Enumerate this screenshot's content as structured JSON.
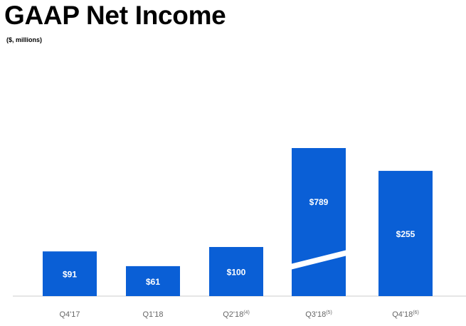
{
  "chart_data": {
    "type": "bar",
    "title": "GAAP Net Income",
    "subtitle": "($, millions)",
    "xlabel": "",
    "ylabel": "",
    "categories": [
      "Q4'17",
      "Q1'18",
      "Q2'18",
      "Q3'18",
      "Q4'18"
    ],
    "category_footnotes": [
      "",
      "",
      "(4)",
      "(5)",
      "(6)"
    ],
    "values": [
      91,
      61,
      100,
      789,
      255
    ],
    "value_labels": [
      "$91",
      "$61",
      "$100",
      "$789",
      "$255"
    ],
    "axis_break": {
      "category": "Q3'18",
      "note": "broken bar (not drawn to scale)"
    },
    "grid": false,
    "legend": "none",
    "colors": {
      "bar": "#0a5fd6",
      "baseline": "#cccccc",
      "tick_text": "#666666",
      "bar_text": "#ffffff"
    }
  }
}
